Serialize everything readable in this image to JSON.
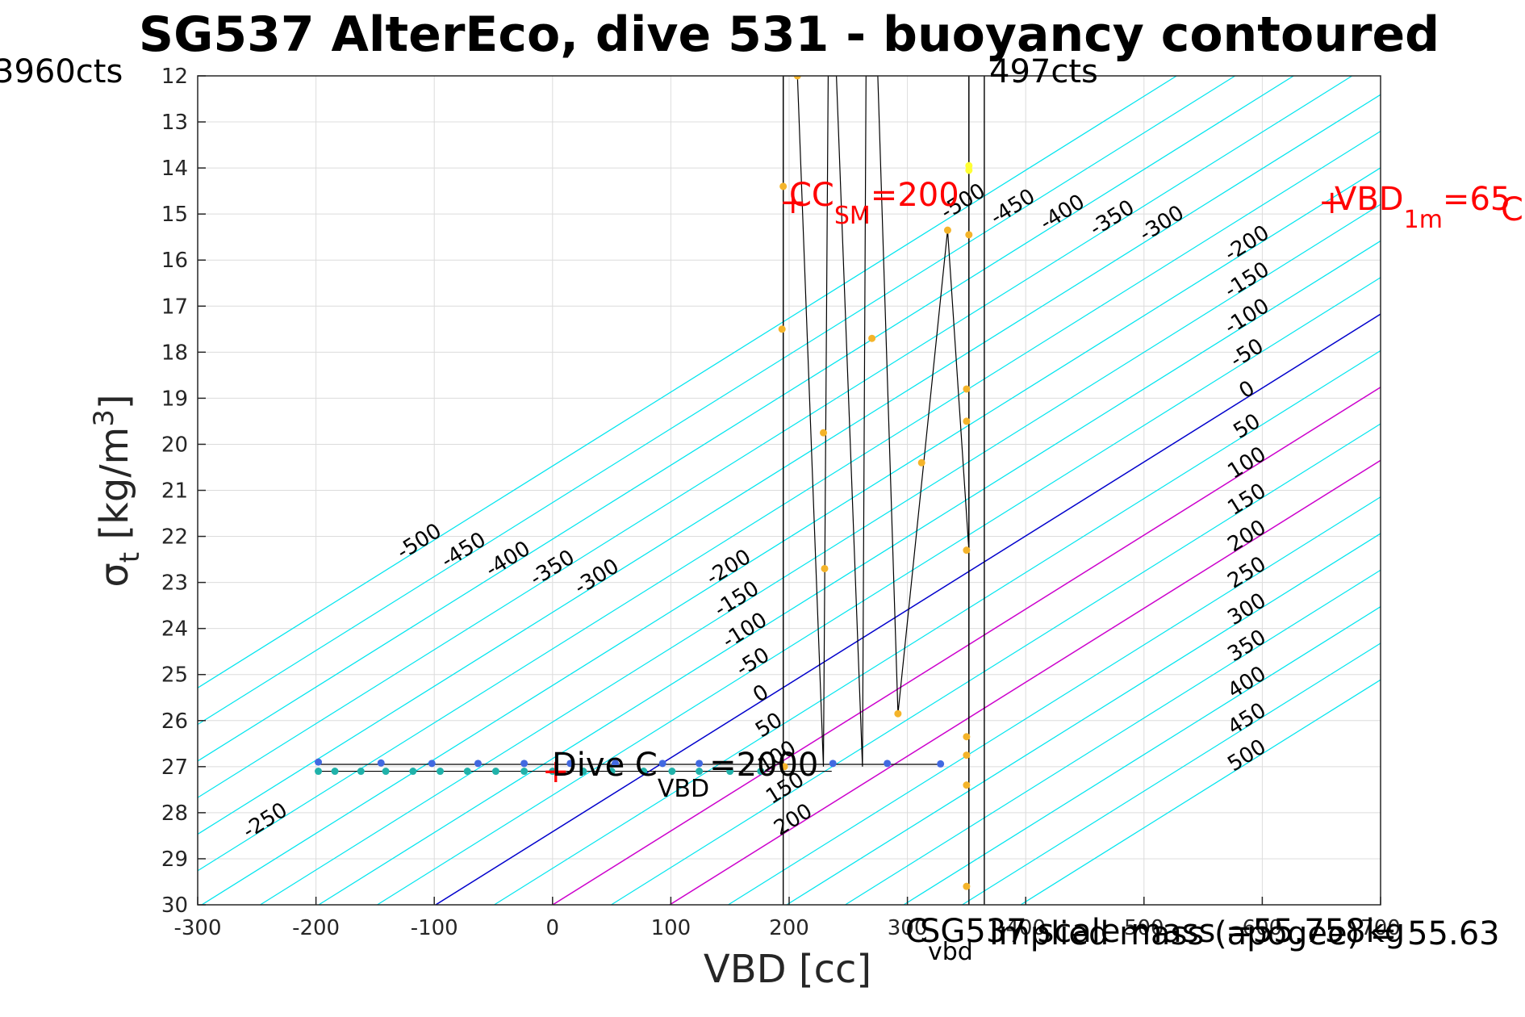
{
  "chart_data": {
    "type": "scatter",
    "title": "SG537 AlterEco, dive 531 - buoyancy contoured",
    "xlabel": "VBD [cc]",
    "ylabel_main": "σ",
    "ylabel_sub": "t",
    "ylabel_unit": "[kg/m",
    "ylabel_sup": "3",
    "ylabel_close": "]",
    "xlim": [
      -300,
      700
    ],
    "ylim": [
      12,
      30
    ],
    "y_reversed": true,
    "grid": true,
    "x_ticks": [
      -300,
      -200,
      -100,
      0,
      100,
      200,
      300,
      400,
      500,
      600,
      700
    ],
    "x_tick_labels": [
      "-300",
      "-200",
      "-100",
      "0",
      "100",
      "200",
      "300",
      "400",
      "500",
      "600",
      "700"
    ],
    "y_ticks": [
      12,
      13,
      14,
      15,
      16,
      17,
      18,
      19,
      20,
      21,
      22,
      23,
      24,
      25,
      26,
      27,
      28,
      29,
      30
    ],
    "y_tick_labels": [
      "12",
      "13",
      "14",
      "15",
      "16",
      "17",
      "18",
      "19",
      "20",
      "21",
      "22",
      "23",
      "24",
      "25",
      "26",
      "27",
      "28",
      "29",
      "30"
    ],
    "contours": {
      "levels": [
        -500,
        -450,
        -400,
        -350,
        -300,
        -250,
        -200,
        -150,
        -100,
        -50,
        0,
        50,
        100,
        150,
        200,
        250,
        300,
        350,
        400,
        450,
        500
      ],
      "neutral_colour": "#0000cc",
      "highlight_levels": [
        100,
        200
      ],
      "highlight_colour": "#cc00cc",
      "other_colour": "#00e5ee",
      "labelled_left": [
        "-500",
        "-450",
        "-400",
        "-350",
        "-300",
        "-250",
        "-200",
        "-150",
        "-100",
        "-50",
        "0",
        "50",
        "100",
        "150",
        "200"
      ],
      "labelled_right": [
        "-500",
        "-450",
        "-400",
        "-350",
        "-300",
        "-200",
        "-150",
        "-100",
        "-50",
        "0",
        "50",
        "100",
        "150",
        "200",
        "250",
        "300",
        "350",
        "400",
        "450",
        "500"
      ]
    },
    "series": [
      {
        "color": "#4169e1",
        "points": [
          [
            -198,
            26.9
          ],
          [
            -145,
            26.92
          ],
          [
            -102,
            26.93
          ],
          [
            -63,
            26.93
          ],
          [
            -24,
            26.93
          ],
          [
            15,
            26.93
          ],
          [
            53,
            26.93
          ],
          [
            93,
            26.93
          ],
          [
            124,
            26.93
          ],
          [
            237,
            26.93
          ],
          [
            283,
            26.93
          ],
          [
            328,
            26.94
          ]
        ]
      },
      {
        "color": "#20b2aa",
        "points": [
          [
            -198,
            27.1
          ],
          [
            -184,
            27.1
          ],
          [
            -162,
            27.1
          ],
          [
            -141,
            27.1
          ],
          [
            -118,
            27.1
          ],
          [
            -95,
            27.1
          ],
          [
            -72,
            27.1
          ],
          [
            -48,
            27.1
          ],
          [
            -24,
            27.1
          ],
          [
            0,
            27.1
          ],
          [
            26,
            27.1
          ],
          [
            50,
            27.1
          ],
          [
            77,
            27.1
          ],
          [
            101,
            27.1
          ],
          [
            124,
            27.1
          ],
          [
            150,
            27.1
          ],
          [
            176,
            27.1
          ]
        ]
      },
      {
        "color": "#f4b42a",
        "points": [
          [
            195,
            14.4
          ],
          [
            194,
            17.5
          ],
          [
            207,
            12.0
          ],
          [
            229,
            19.75
          ],
          [
            230,
            22.7
          ],
          [
            270,
            17.7
          ],
          [
            312,
            20.4
          ],
          [
            334,
            15.35
          ],
          [
            352,
            15.45
          ],
          [
            350,
            18.8
          ],
          [
            350,
            19.5
          ],
          [
            350,
            22.3
          ],
          [
            292,
            25.85
          ],
          [
            350,
            26.35
          ],
          [
            350,
            26.75
          ],
          [
            350,
            27.4
          ],
          [
            350,
            29.6
          ],
          [
            196,
            27.0
          ]
        ]
      },
      {
        "color": "#ffff33",
        "points": [
          [
            352,
            13.95
          ],
          [
            352,
            14.05
          ]
        ]
      }
    ],
    "profile_track": [
      [
        195,
        12.0
      ],
      [
        195,
        27.0
      ],
      [
        195,
        12.0
      ],
      [
        207,
        12.0
      ],
      [
        229,
        27.0
      ],
      [
        233,
        12.0
      ],
      [
        240,
        12.0
      ],
      [
        262,
        27.0
      ],
      [
        265,
        12.0
      ],
      [
        275,
        12.0
      ],
      [
        292,
        25.85
      ],
      [
        334,
        15.35
      ],
      [
        352,
        22.3
      ],
      [
        352,
        29.6
      ],
      [
        352,
        12.0
      ]
    ],
    "horizontal_tracks": [
      [
        -200,
        26.95,
        330
      ],
      [
        -200,
        27.1,
        236
      ]
    ],
    "vertical_lines": [
      195,
      352,
      365
    ],
    "annotations": {
      "left_cts": "3960cts",
      "right_cts": "497cts",
      "cc_main": "CC",
      "cc_sub": "SM",
      "cc_value": "=200",
      "vbd_main": "VBD",
      "vbd_sub": "1m",
      "vbd_value": "=65",
      "vbd_overflow": "C",
      "dive_main": "Dive C",
      "dive_sub": "VBD",
      "dive_value": "=2000",
      "c_vbd_main": "C",
      "c_vbd_sub": "vbd",
      "scale_mass": "SG537 scale mass =55.758kg",
      "implied_mass": "Implied mass (apogee) = 55.63",
      "marker": "+",
      "marker_colour": "#ff0000"
    }
  }
}
